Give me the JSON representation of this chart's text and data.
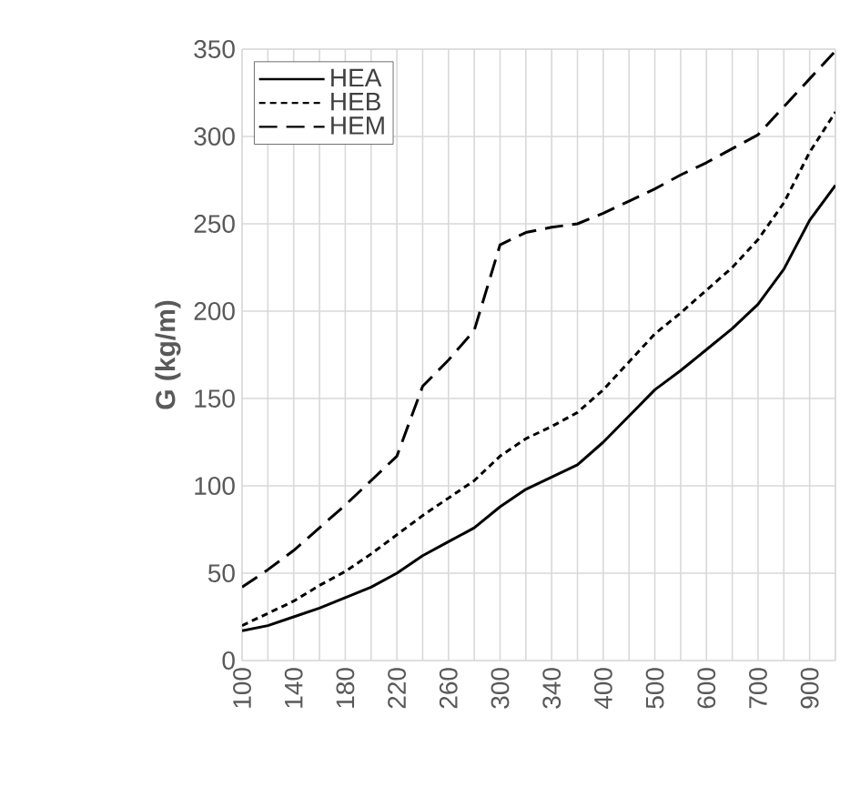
{
  "chart_data": {
    "type": "line",
    "ylabel": "G (kg/m)",
    "categories": [
      "100",
      null,
      "140",
      null,
      "180",
      null,
      "220",
      null,
      "260",
      null,
      "300",
      null,
      "340",
      null,
      "400",
      null,
      "500",
      null,
      "600",
      null,
      "700",
      null,
      "900",
      null
    ],
    "series": [
      {
        "name": "HEA",
        "color": "#000000",
        "line_style": "solid",
        "values": [
          17,
          20,
          25,
          30,
          36,
          42,
          50,
          60,
          68,
          76,
          88,
          98,
          105,
          112,
          125,
          140,
          155,
          166,
          178,
          190,
          204,
          224,
          252,
          272
        ]
      },
      {
        "name": "HEB",
        "color": "#000000",
        "line_style": "dotted",
        "values": [
          20,
          27,
          34,
          43,
          51,
          61,
          72,
          83,
          93,
          103,
          117,
          127,
          134,
          142,
          155,
          171,
          187,
          199,
          212,
          225,
          241,
          262,
          291,
          314
        ]
      },
      {
        "name": "HEM",
        "color": "#000000",
        "line_style": "dashed",
        "values": [
          42,
          52,
          63,
          76,
          89,
          103,
          117,
          157,
          172,
          189,
          238,
          245,
          248,
          250,
          256,
          263,
          270,
          278,
          285,
          293,
          301,
          317,
          333,
          349
        ]
      }
    ],
    "ylim": [
      0,
      350
    ],
    "yticks": [
      0,
      50,
      100,
      150,
      200,
      250,
      300,
      350
    ],
    "grid": true,
    "legend": "top left",
    "marker": "none"
  }
}
